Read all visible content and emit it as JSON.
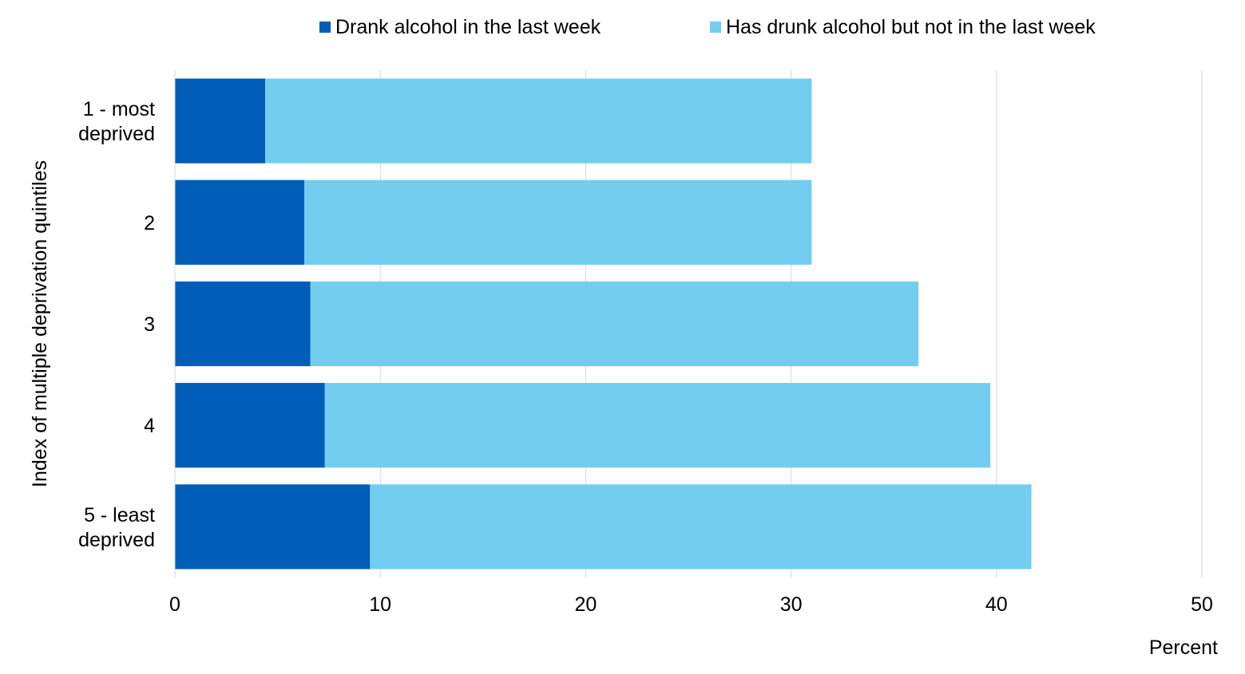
{
  "chart_data": {
    "type": "bar",
    "orientation": "horizontal",
    "stacked": true,
    "categories": [
      [
        "1 - most",
        "deprived"
      ],
      [
        "2"
      ],
      [
        "3"
      ],
      [
        "4"
      ],
      [
        "5 - least",
        "deprived"
      ]
    ],
    "series": [
      {
        "name": "Drank alcohol in the last week",
        "values": [
          4.4,
          6.3,
          6.6,
          7.3,
          9.5
        ],
        "color": "#005EB8"
      },
      {
        "name": "Has drunk alcohol but not in the last week",
        "values": [
          26.6,
          24.7,
          29.6,
          32.4,
          32.2
        ],
        "color": "#73CDEF"
      }
    ],
    "xlabel": "Percent",
    "ylabel": "Index of multiple deprivation quintiles",
    "xlim": [
      0,
      50
    ],
    "xticks": [
      0,
      10,
      20,
      30,
      40,
      50
    ],
    "grid": true,
    "legend_position": "top"
  }
}
